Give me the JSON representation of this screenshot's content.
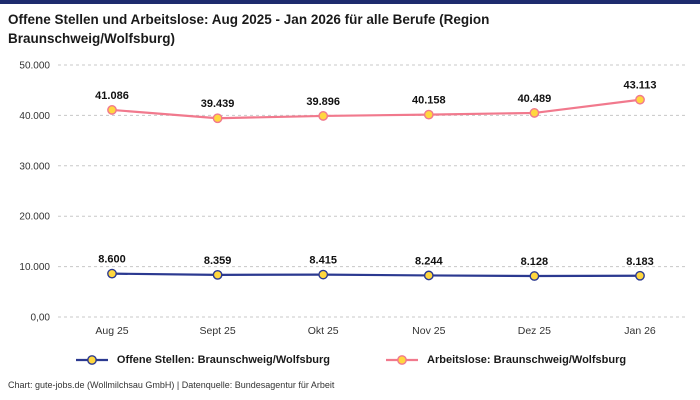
{
  "page": {
    "title": "Offene Stellen und Arbeitslose: Aug 2025 - Jan 2026 für alle Berufe (Region Braunschweig/Wolfsburg)",
    "footer": "Chart: gute-jobs.de (Wollmilchsau GmbH) | Datenquelle: Bundesagentur für Arbeit"
  },
  "colors": {
    "accent_bar": "#1e2b6e",
    "open_positions": "#2b3990",
    "unemployed": "#f1798d",
    "marker_fill": "#ffd73e",
    "grid": "#c8c8c8",
    "text": "#111111",
    "axis_text": "#333333"
  },
  "chart_data": {
    "type": "line",
    "title": "Offene Stellen und Arbeitslose: Aug 2025 - Jan 2026 für alle Berufe (Region Braunschweig/Wolfsburg)",
    "categories": [
      "Aug 25",
      "Sept 25",
      "Okt 25",
      "Nov 25",
      "Dez 25",
      "Jan 26"
    ],
    "series": [
      {
        "name": "Offene Stellen: Braunschweig/Wolfsburg",
        "color_key": "open_positions",
        "values": [
          8600,
          8359,
          8415,
          8244,
          8128,
          8183
        ],
        "labels": [
          "8.600",
          "8.359",
          "8.415",
          "8.244",
          "8.128",
          "8.183"
        ]
      },
      {
        "name": "Arbeitslose: Braunschweig/Wolfsburg",
        "color_key": "unemployed",
        "values": [
          41086,
          39439,
          39896,
          40158,
          40489,
          43113
        ],
        "labels": [
          "41.086",
          "39.439",
          "39.896",
          "40.158",
          "40.489",
          "43.113"
        ]
      }
    ],
    "y_axis": {
      "min": 0,
      "max": 50000,
      "tick_values": [
        0,
        10000,
        20000,
        30000,
        40000,
        50000
      ],
      "tick_labels": [
        "0,00",
        "10.000",
        "20.000",
        "30.000",
        "40.000",
        "50.000"
      ]
    },
    "grid": true,
    "legend_position": "bottom"
  }
}
